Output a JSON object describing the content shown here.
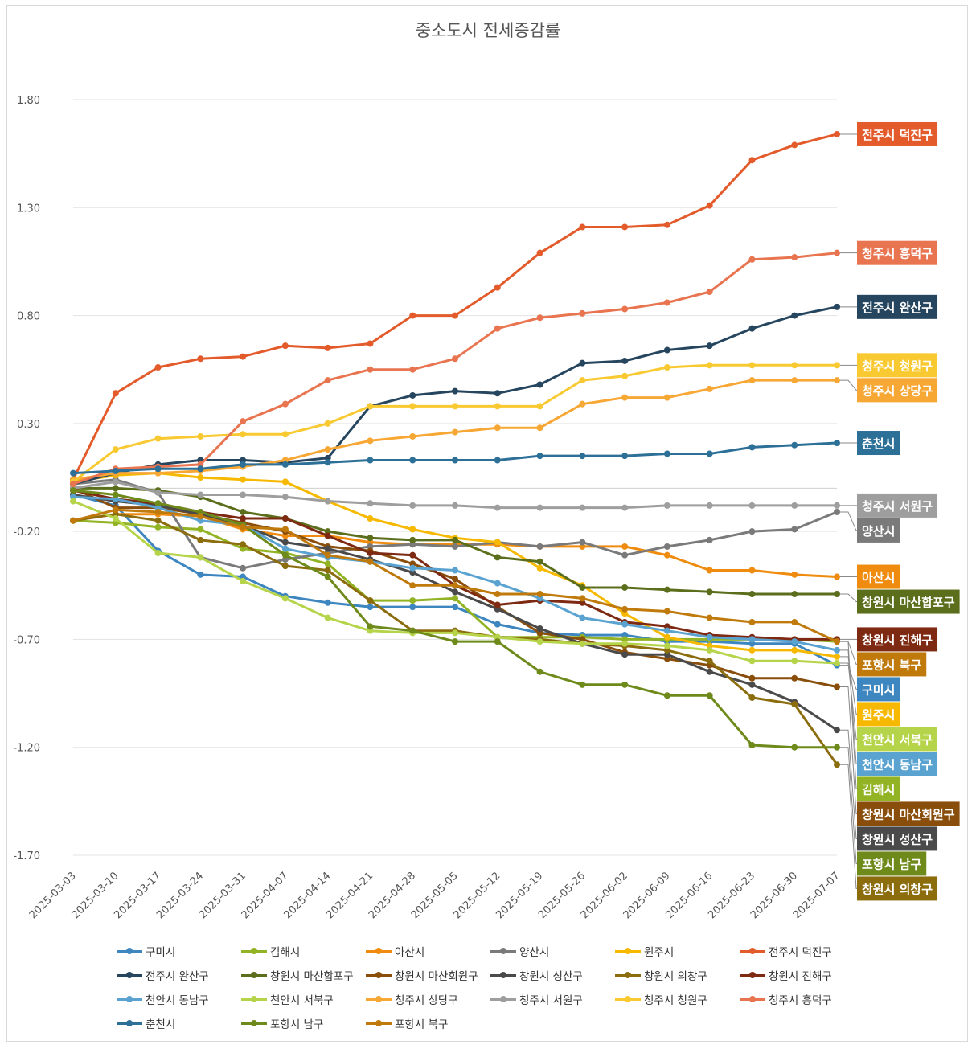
{
  "chart_data": {
    "type": "line",
    "title": "중소도시 전세증감률",
    "xlabel": "",
    "ylabel": "",
    "ylim": [
      -1.7,
      1.8
    ],
    "yticks": [
      "1.80",
      "1.30",
      "0.80",
      "0.30",
      "-0.20",
      "-0.70",
      "-1.20",
      "-1.70"
    ],
    "x": [
      "2025-03-03",
      "2025-03-10",
      "2025-03-17",
      "2025-03-24",
      "2025-03-31",
      "2025-04-07",
      "2025-04-14",
      "2025-04-21",
      "2025-04-28",
      "2025-05-05",
      "2025-05-12",
      "2025-05-19",
      "2025-05-26",
      "2025-06-02",
      "2025-06-09",
      "2025-06-16",
      "2025-06-23",
      "2025-06-30",
      "2025-07-07"
    ],
    "grid": true,
    "legend": "bottom",
    "series": [
      {
        "name": "구미시",
        "color": "#3d86bf",
        "label_color": "#3d86bf",
        "values": [
          -0.03,
          -0.08,
          -0.29,
          -0.4,
          -0.41,
          -0.5,
          -0.53,
          -0.55,
          -0.55,
          -0.55,
          -0.63,
          -0.67,
          -0.68,
          -0.68,
          -0.71,
          -0.71,
          -0.72,
          -0.72,
          -0.82
        ]
      },
      {
        "name": "김해시",
        "color": "#92b324",
        "label_color": "#92b324",
        "values": [
          -0.15,
          -0.16,
          -0.18,
          -0.19,
          -0.28,
          -0.3,
          -0.35,
          -0.52,
          -0.52,
          -0.51,
          -0.69,
          -0.69,
          -0.69,
          -0.7,
          -0.7,
          -0.7,
          -0.7,
          -0.7,
          -0.71
        ]
      },
      {
        "name": "아산시",
        "color": "#ef8c10",
        "label_color": "#ef8c10",
        "values": [
          -0.15,
          -0.12,
          -0.12,
          -0.13,
          -0.19,
          -0.22,
          -0.22,
          -0.25,
          -0.26,
          -0.26,
          -0.26,
          -0.27,
          -0.27,
          -0.27,
          -0.31,
          -0.38,
          -0.38,
          -0.4,
          -0.41
        ]
      },
      {
        "name": "양산시",
        "color": "#7a7a7a",
        "label_color": "#7a7a7a",
        "values": [
          0.02,
          0.04,
          -0.02,
          -0.32,
          -0.37,
          -0.33,
          -0.3,
          -0.27,
          -0.26,
          -0.27,
          -0.25,
          -0.27,
          -0.25,
          -0.31,
          -0.27,
          -0.24,
          -0.2,
          -0.19,
          -0.11
        ]
      },
      {
        "name": "원주시",
        "color": "#f6b900",
        "label_color": "#f6b900",
        "values": [
          0.03,
          0.06,
          0.07,
          0.05,
          0.04,
          0.03,
          -0.06,
          -0.14,
          -0.19,
          -0.23,
          -0.25,
          -0.37,
          -0.45,
          -0.58,
          -0.69,
          -0.73,
          -0.75,
          -0.75,
          -0.78
        ]
      },
      {
        "name": "전주시 덕진구",
        "color": "#e35a2b",
        "label_color": "#e35a2b",
        "values": [
          0.04,
          0.44,
          0.56,
          0.6,
          0.61,
          0.66,
          0.65,
          0.67,
          0.8,
          0.8,
          0.93,
          1.09,
          1.21,
          1.21,
          1.22,
          1.31,
          1.52,
          1.59,
          1.64
        ]
      },
      {
        "name": "전주시 완산구",
        "color": "#26465f",
        "label_color": "#26465f",
        "values": [
          0.02,
          0.07,
          0.11,
          0.13,
          0.13,
          0.12,
          0.14,
          0.38,
          0.43,
          0.45,
          0.44,
          0.48,
          0.58,
          0.59,
          0.64,
          0.66,
          0.74,
          0.8,
          0.84
        ]
      },
      {
        "name": "창원시 마산합포구",
        "color": "#5b6e1c",
        "label_color": "#5b6e1c",
        "values": [
          0.0,
          0.0,
          -0.01,
          -0.04,
          -0.11,
          -0.14,
          -0.2,
          -0.23,
          -0.24,
          -0.24,
          -0.32,
          -0.34,
          -0.46,
          -0.46,
          -0.47,
          -0.48,
          -0.49,
          -0.49,
          -0.49
        ]
      },
      {
        "name": "창원시 마산회원구",
        "color": "#8a4e0c",
        "label_color": "#8a4e0c",
        "values": [
          0.0,
          -0.09,
          -0.09,
          -0.12,
          -0.16,
          -0.2,
          -0.27,
          -0.29,
          -0.35,
          -0.42,
          -0.55,
          -0.67,
          -0.7,
          -0.76,
          -0.79,
          -0.82,
          -0.88,
          -0.88,
          -0.92
        ]
      },
      {
        "name": "창원시 성산구",
        "color": "#4a4a4a",
        "label_color": "#4a4a4a",
        "values": [
          -0.03,
          -0.06,
          -0.08,
          -0.12,
          -0.17,
          -0.25,
          -0.28,
          -0.33,
          -0.39,
          -0.48,
          -0.56,
          -0.65,
          -0.72,
          -0.77,
          -0.77,
          -0.85,
          -0.91,
          -0.99,
          -1.12
        ]
      },
      {
        "name": "창원시 의창구",
        "color": "#8c6d0e",
        "label_color": "#8c6d0e",
        "values": [
          -0.15,
          -0.12,
          -0.15,
          -0.24,
          -0.26,
          -0.36,
          -0.38,
          -0.52,
          -0.66,
          -0.66,
          -0.69,
          -0.7,
          -0.72,
          -0.73,
          -0.75,
          -0.8,
          -0.97,
          -1.0,
          -1.28
        ]
      },
      {
        "name": "창원시 진해구",
        "color": "#7e2a12",
        "label_color": "#7e2a12",
        "values": [
          -0.01,
          -0.05,
          -0.07,
          -0.11,
          -0.14,
          -0.14,
          -0.22,
          -0.3,
          -0.31,
          -0.45,
          -0.54,
          -0.52,
          -0.53,
          -0.62,
          -0.64,
          -0.68,
          -0.69,
          -0.7,
          -0.7
        ]
      },
      {
        "name": "천안시 동남구",
        "color": "#5aa3d1",
        "label_color": "#5aa3d1",
        "values": [
          -0.04,
          -0.05,
          -0.09,
          -0.15,
          -0.17,
          -0.28,
          -0.32,
          -0.34,
          -0.37,
          -0.38,
          -0.44,
          -0.51,
          -0.6,
          -0.63,
          -0.66,
          -0.69,
          -0.7,
          -0.71,
          -0.75
        ]
      },
      {
        "name": "천안시 서북구",
        "color": "#b6d44a",
        "label_color": "#b6d44a",
        "values": [
          -0.06,
          -0.14,
          -0.3,
          -0.32,
          -0.43,
          -0.51,
          -0.6,
          -0.66,
          -0.67,
          -0.67,
          -0.69,
          -0.71,
          -0.72,
          -0.72,
          -0.73,
          -0.75,
          -0.8,
          -0.8,
          -0.81
        ]
      },
      {
        "name": "청주시 상당구",
        "color": "#f7a734",
        "label_color": "#f7a734",
        "values": [
          0.04,
          0.07,
          0.07,
          0.08,
          0.1,
          0.13,
          0.18,
          0.22,
          0.24,
          0.26,
          0.28,
          0.28,
          0.39,
          0.42,
          0.42,
          0.46,
          0.5,
          0.5,
          0.5
        ]
      },
      {
        "name": "청주시 서원구",
        "color": "#9e9e9e",
        "label_color": "#9e9e9e",
        "values": [
          0.0,
          0.03,
          -0.02,
          -0.03,
          -0.03,
          -0.04,
          -0.06,
          -0.07,
          -0.08,
          -0.08,
          -0.09,
          -0.09,
          -0.09,
          -0.09,
          -0.08,
          -0.08,
          -0.08,
          -0.08,
          -0.08
        ]
      },
      {
        "name": "청주시 청원구",
        "color": "#f9c931",
        "label_color": "#f9c931",
        "values": [
          0.03,
          0.18,
          0.23,
          0.24,
          0.25,
          0.25,
          0.3,
          0.38,
          0.38,
          0.38,
          0.38,
          0.38,
          0.5,
          0.52,
          0.56,
          0.57,
          0.57,
          0.57,
          0.57
        ]
      },
      {
        "name": "청주시 흥덕구",
        "color": "#e87550",
        "label_color": "#e87550",
        "values": [
          0.02,
          0.09,
          0.1,
          0.11,
          0.31,
          0.39,
          0.5,
          0.55,
          0.55,
          0.6,
          0.74,
          0.79,
          0.81,
          0.83,
          0.86,
          0.91,
          1.06,
          1.07,
          1.09
        ]
      },
      {
        "name": "춘천시",
        "color": "#2c6f97",
        "label_color": "#2c6f97",
        "values": [
          0.07,
          0.08,
          0.09,
          0.09,
          0.11,
          0.11,
          0.12,
          0.13,
          0.13,
          0.13,
          0.13,
          0.15,
          0.15,
          0.15,
          0.16,
          0.16,
          0.19,
          0.2,
          0.21
        ]
      },
      {
        "name": "포항시 남구",
        "color": "#6e8a1a",
        "label_color": "#6e8a1a",
        "values": [
          -0.01,
          -0.03,
          -0.07,
          -0.11,
          -0.17,
          -0.31,
          -0.41,
          -0.64,
          -0.66,
          -0.71,
          -0.71,
          -0.85,
          -0.91,
          -0.91,
          -0.96,
          -0.96,
          -1.19,
          -1.2,
          -1.2
        ]
      },
      {
        "name": "포항시 북구",
        "color": "#c07a0c",
        "label_color": "#c07a0c",
        "values": [
          -0.15,
          -0.1,
          -0.11,
          -0.13,
          -0.18,
          -0.19,
          -0.31,
          -0.34,
          -0.45,
          -0.45,
          -0.49,
          -0.49,
          -0.51,
          -0.56,
          -0.57,
          -0.6,
          -0.62,
          -0.62,
          -0.71
        ]
      }
    ],
    "end_labels_order": [
      "전주시 덕진구",
      "청주시 흥덕구",
      "전주시 완산구",
      "청주시 청원구",
      "청주시 상당구",
      "춘천시",
      "청주시 서원구",
      "양산시",
      "아산시",
      "창원시 마산합포구",
      "창원시 진해구",
      "포항시 북구",
      "구미시",
      "원주시",
      "천안시 서북구",
      "천안시 동남구",
      "김해시",
      "창원시 마산회원구",
      "창원시 성산구",
      "포항시 남구",
      "창원시 의창구"
    ]
  }
}
